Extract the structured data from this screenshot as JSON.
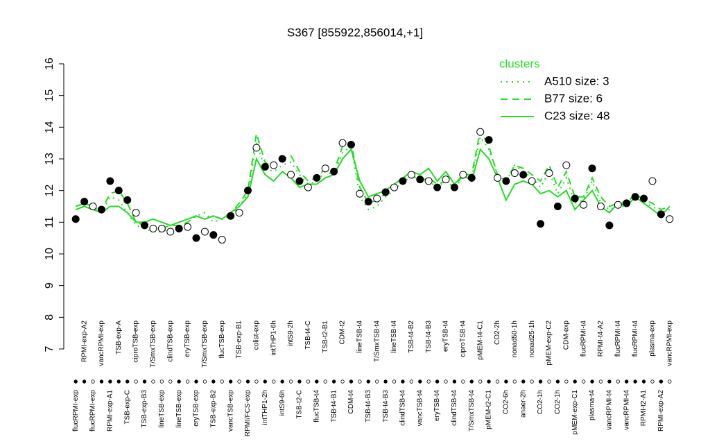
{
  "chart_data": {
    "type": "line",
    "title": "S367 [855922,856014,+1]",
    "legend_title": "clusters",
    "legend_position": "top-right",
    "legend_color": "#22dd22",
    "ylim": [
      7,
      16
    ],
    "yticks": [
      7,
      8,
      9,
      10,
      11,
      12,
      13,
      14,
      15,
      16
    ],
    "categories": [
      "flucRPMI-exp",
      "RPMI-exp-A2",
      "flucRPMI-exp",
      "vancRPMI-exp",
      "RPMI-exp-A1",
      "TSB-exp-A",
      "TSB-exp-C",
      "ciproTSB-exp",
      "TSB-exp-B3",
      "T/SmxTSB-exp",
      "lineTSB-exp",
      "clindTSB-exp",
      "lineTSB-exp",
      "eryTSB-exp",
      "eryTSB-exp",
      "T/SmxTSB-exp",
      "TSB-exp-B2",
      "flucTSB-exp",
      "vancTSB-exp",
      "TSB-exp-B1",
      "RPMI/FCS-exp",
      "colist-exp",
      "intTHP1-2h",
      "intTHP1-6h",
      "intS9-6h",
      "intS9-2h",
      "TSB-t2-C",
      "TSB-t4-C",
      "flucTSB-t4",
      "TSB-t2-B1",
      "TSB-t4-B1",
      "CDM-t2",
      "CDM-t4",
      "lineTSB-t4",
      "TSB-t4-B3",
      "T/SmxTSB-t4",
      "TSB-t4-B3",
      "lineTSB-t4",
      "clindTSB-t4",
      "TSB-t4-B2",
      "vancTSB-t4",
      "TSB-t4-B3",
      "eryTSB-t4",
      "eryTSB-t4",
      "clindTSB-t4",
      "ciproTSB-t4",
      "T/SmxTSB-t4",
      "pMEM-t4-C1",
      "pMEM-t2-C1",
      "CO2-2h",
      "CO2-6h",
      "nonad50-1h",
      "anaer-2h",
      "nonad25-1h",
      "CO2-1h",
      "pMEM-exp-C2",
      "CO2-1h",
      "CDM-exp",
      "pMEM-exp-C1",
      "flucRPMI-t4",
      "plasma-t4",
      "RPMI-t4-A2",
      "vancRPMI-t4",
      "flucRPMI-t4",
      "vancRPMI-t4",
      "flucRPMI-t4",
      "RPMI-t2-A1",
      "plasma-exp",
      "RPMI-exp-A2",
      "vancRPMI-exp"
    ],
    "values": [
      11.1,
      11.65,
      11.5,
      11.4,
      12.3,
      12.0,
      11.7,
      11.3,
      10.9,
      10.8,
      10.8,
      10.7,
      10.8,
      10.85,
      10.5,
      10.7,
      10.6,
      10.45,
      11.2,
      11.3,
      12.0,
      13.35,
      12.75,
      12.8,
      13.0,
      12.5,
      12.3,
      12.1,
      12.4,
      12.7,
      12.6,
      13.5,
      13.45,
      11.9,
      11.65,
      11.75,
      11.95,
      12.1,
      12.3,
      12.5,
      12.35,
      12.3,
      12.1,
      12.35,
      12.1,
      12.5,
      12.4,
      13.85,
      13.6,
      12.4,
      12.3,
      12.55,
      12.5,
      12.3,
      10.95,
      12.55,
      11.5,
      12.8,
      11.75,
      11.55,
      12.7,
      11.5,
      10.9,
      11.55,
      11.6,
      11.8,
      11.75,
      12.3,
      11.25,
      11.1
    ],
    "point_colors": [
      "black",
      "black",
      "white",
      "black",
      "black",
      "black",
      "black",
      "white",
      "black",
      "white",
      "white",
      "white",
      "black",
      "white",
      "black",
      "white",
      "black",
      "white",
      "black",
      "white",
      "black",
      "white",
      "black",
      "white",
      "black",
      "white",
      "black",
      "white",
      "black",
      "white",
      "black",
      "white",
      "black",
      "white",
      "black",
      "white",
      "black",
      "white",
      "black",
      "white",
      "black",
      "white",
      "black",
      "white",
      "black",
      "white",
      "black",
      "white",
      "black",
      "white",
      "black",
      "white",
      "black",
      "white",
      "black",
      "white",
      "black",
      "white",
      "black",
      "white",
      "black",
      "white",
      "black",
      "white",
      "black",
      "black",
      "black",
      "white",
      "black",
      "white"
    ],
    "series": [
      {
        "name": "A510 size: 3",
        "color": "#22dd22",
        "line_style": "dotted",
        "values": [
          11.5,
          11.6,
          11.5,
          11.3,
          11.8,
          11.7,
          11.3,
          10.9,
          10.8,
          10.7,
          10.7,
          10.8,
          10.8,
          11.0,
          11.2,
          11.3,
          11.0,
          11.1,
          11.2,
          11.5,
          11.9,
          13.5,
          12.7,
          12.6,
          12.8,
          12.9,
          12.5,
          12.2,
          12.3,
          12.6,
          12.5,
          13.2,
          13.4,
          11.8,
          11.4,
          11.5,
          11.8,
          12.0,
          12.3,
          12.4,
          12.3,
          12.3,
          12.1,
          12.3,
          12.1,
          12.4,
          12.4,
          13.7,
          13.3,
          12.5,
          12.3,
          12.8,
          12.6,
          12.4,
          12.1,
          12.6,
          11.9,
          12.4,
          11.6,
          11.7,
          12.3,
          11.6,
          11.4,
          11.5,
          11.5,
          11.8,
          11.6,
          11.5,
          11.3,
          11.4
        ]
      },
      {
        "name": "B77 size: 6",
        "color": "#22dd22",
        "line_style": "dashed",
        "values": [
          11.5,
          11.6,
          11.5,
          11.4,
          11.9,
          12.0,
          11.6,
          11.0,
          10.9,
          10.8,
          10.8,
          10.9,
          10.9,
          11.0,
          11.2,
          11.1,
          11.2,
          11.1,
          11.3,
          11.6,
          12.0,
          13.8,
          12.9,
          12.7,
          13.0,
          13.1,
          12.6,
          12.3,
          12.4,
          12.7,
          12.6,
          13.4,
          13.5,
          12.1,
          11.6,
          11.7,
          11.9,
          12.1,
          12.4,
          12.5,
          12.3,
          12.4,
          12.2,
          12.3,
          12.1,
          12.5,
          12.5,
          13.9,
          13.4,
          12.5,
          12.3,
          12.8,
          12.7,
          12.5,
          12.3,
          12.8,
          12.1,
          12.6,
          11.8,
          11.8,
          12.4,
          11.8,
          11.5,
          11.6,
          11.6,
          11.9,
          11.7,
          11.6,
          11.4,
          11.5
        ]
      },
      {
        "name": "C23 size: 48",
        "color": "#22dd22",
        "line_style": "solid",
        "values": [
          11.4,
          11.5,
          11.4,
          11.3,
          11.5,
          11.5,
          11.3,
          11.0,
          11.0,
          11.1,
          11.0,
          10.9,
          11.0,
          11.1,
          11.2,
          11.1,
          11.2,
          11.1,
          11.3,
          11.5,
          11.8,
          13.0,
          12.5,
          12.3,
          12.6,
          12.4,
          12.1,
          12.2,
          12.2,
          12.4,
          12.5,
          13.0,
          13.3,
          12.3,
          11.8,
          11.9,
          12.0,
          12.2,
          12.4,
          12.6,
          12.5,
          12.7,
          12.3,
          12.6,
          12.2,
          12.5,
          12.3,
          13.3,
          13.0,
          12.4,
          11.7,
          12.2,
          12.3,
          12.2,
          11.9,
          12.0,
          11.8,
          12.0,
          11.4,
          11.7,
          12.0,
          11.5,
          11.3,
          11.6,
          11.5,
          11.8,
          11.6,
          11.4,
          11.2,
          11.5
        ]
      }
    ]
  }
}
